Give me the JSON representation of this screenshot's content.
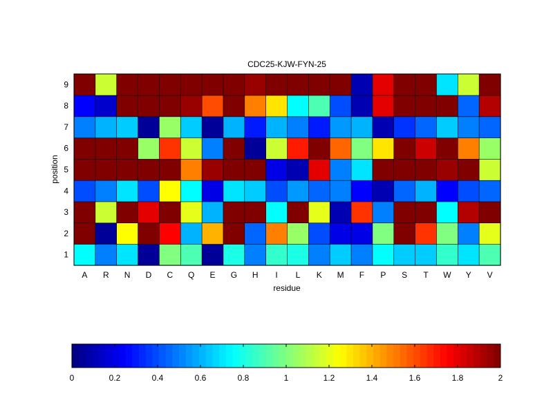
{
  "chart_data": {
    "type": "heatmap",
    "title": "CDC25-KJW-FYN-25",
    "xlabel": "residue",
    "ylabel": "position",
    "x_categories": [
      "A",
      "R",
      "N",
      "D",
      "C",
      "Q",
      "E",
      "G",
      "H",
      "I",
      "L",
      "K",
      "M",
      "F",
      "P",
      "S",
      "T",
      "W",
      "Y",
      "V"
    ],
    "y_categories": [
      "1",
      "2",
      "3",
      "4",
      "5",
      "6",
      "7",
      "8",
      "9"
    ],
    "value_range": [
      0,
      2
    ],
    "colormap": "jet",
    "colorbar": {
      "placement": "bottom",
      "ticks": [
        0,
        0.2,
        0.4,
        0.6,
        0.8,
        1,
        1.2,
        1.4,
        1.6,
        1.8,
        2
      ],
      "tick_labels": [
        "0",
        "0.2",
        "0.4",
        "0.6",
        "0.8",
        "1",
        "1.2",
        "1.4",
        "1.6",
        "1.8",
        "2"
      ]
    },
    "values": [
      [
        0.75,
        0.5,
        0.7,
        0.05,
        1.0,
        0.9,
        0.05,
        0.8,
        0.5,
        0.85,
        0.8,
        0.5,
        0.65,
        0.5,
        0.75,
        0.65,
        0.65,
        0.85,
        0.7,
        0.9
      ],
      [
        2.0,
        0.05,
        1.25,
        2.0,
        1.75,
        0.6,
        1.4,
        2.0,
        0.45,
        1.5,
        1.05,
        0.4,
        0.2,
        0.2,
        1.0,
        2.0,
        1.65,
        1.0,
        0.5,
        1.2
      ],
      [
        2.0,
        1.15,
        2.0,
        1.8,
        2.0,
        1.2,
        0.6,
        2.0,
        2.0,
        0.75,
        2.0,
        1.2,
        0.1,
        1.65,
        0.5,
        2.0,
        2.0,
        0.75,
        1.9,
        2.0
      ],
      [
        0.4,
        0.5,
        0.7,
        0.4,
        1.25,
        0.75,
        0.2,
        0.7,
        0.65,
        0.4,
        0.55,
        0.45,
        0.5,
        0.25,
        0.1,
        0.45,
        0.6,
        0.25,
        0.4,
        0.45
      ],
      [
        2.0,
        2.0,
        2.0,
        2.0,
        2.0,
        1.5,
        1.95,
        2.0,
        2.0,
        0.2,
        0.1,
        1.8,
        0.5,
        0.7,
        2.0,
        2.0,
        2.0,
        1.95,
        2.0,
        1.15
      ],
      [
        2.0,
        2.0,
        2.0,
        1.05,
        1.65,
        1.15,
        0.5,
        2.0,
        0.05,
        1.15,
        1.7,
        2.0,
        1.55,
        1.0,
        1.3,
        2.0,
        1.85,
        2.0,
        1.5,
        1.05
      ],
      [
        0.5,
        0.6,
        0.65,
        0.05,
        1.05,
        0.65,
        0.05,
        0.6,
        0.3,
        0.6,
        0.5,
        0.3,
        0.55,
        0.6,
        0.1,
        0.35,
        0.45,
        0.65,
        0.5,
        0.45
      ],
      [
        0.25,
        0.15,
        2.0,
        2.0,
        2.0,
        1.95,
        1.6,
        2.0,
        1.5,
        1.3,
        0.75,
        0.9,
        0.4,
        0.1,
        1.8,
        2.0,
        2.0,
        2.0,
        0.45,
        1.9
      ],
      [
        2.0,
        1.15,
        2.0,
        2.0,
        2.0,
        2.0,
        2.0,
        2.0,
        1.95,
        2.0,
        2.0,
        2.0,
        2.0,
        0.1,
        1.8,
        2.0,
        2.0,
        0.7,
        1.15,
        2.0
      ]
    ]
  }
}
